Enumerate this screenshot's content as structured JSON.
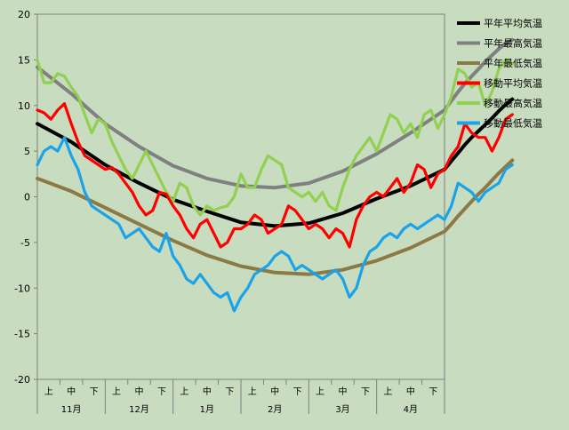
{
  "chart_data": {
    "type": "line",
    "title": "",
    "xlabel": "",
    "ylabel": "",
    "ylim": [
      -20,
      20
    ],
    "yticks": [
      -20,
      -15,
      -10,
      -5,
      0,
      5,
      10,
      15,
      20
    ],
    "grid": false,
    "legend_position": "top-right",
    "background_color": "#c8dcc0",
    "x_positions_per_month": 30,
    "months": [
      "11月",
      "12月",
      "1月",
      "2月",
      "3月",
      "4月"
    ],
    "decades": [
      "上",
      "中",
      "下"
    ],
    "series": [
      {
        "name": "平年平均気温",
        "color": "#000000",
        "x": [
          0,
          15,
          30,
          45,
          60,
          75,
          90,
          105,
          120,
          135,
          150,
          165,
          180
        ],
        "values": [
          8.0,
          6.0,
          3.5,
          1.5,
          -0.3,
          -1.6,
          -2.8,
          -3.2,
          -2.9,
          -1.8,
          -0.2,
          1.2,
          3.0
        ]
      },
      {
        "name": "平年最高気温",
        "color": "#808080",
        "x": [
          0,
          15,
          30,
          45,
          60,
          75,
          90,
          105,
          120,
          135,
          150,
          165,
          180
        ],
        "values": [
          14.2,
          11.3,
          8.0,
          5.5,
          3.4,
          2.0,
          1.2,
          1.0,
          1.5,
          2.8,
          4.7,
          7.0,
          9.5
        ]
      },
      {
        "name": "平年最低気温",
        "color": "#8c7a46",
        "x": [
          0,
          15,
          30,
          45,
          60,
          75,
          90,
          105,
          120,
          135,
          150,
          165,
          180
        ],
        "values": [
          2.0,
          0.6,
          -1.2,
          -3.0,
          -4.8,
          -6.4,
          -7.6,
          -8.3,
          -8.5,
          -8.0,
          -7.0,
          -5.6,
          -3.8
        ]
      },
      {
        "name": "移動平均気温",
        "color": "#ff0000",
        "x": [
          0,
          3,
          6,
          9,
          12,
          15,
          18,
          21,
          24,
          27,
          30,
          33,
          36,
          39,
          42,
          45,
          48,
          51,
          54,
          57,
          60,
          63,
          66,
          69,
          72,
          75,
          78,
          81,
          84,
          87,
          90,
          93,
          96,
          99,
          102,
          105,
          108,
          111,
          114,
          117,
          120,
          123,
          126,
          129,
          132,
          135,
          138,
          141,
          144,
          147,
          150,
          153,
          156,
          159,
          162,
          165,
          168,
          171,
          174,
          177,
          180
        ],
        "values": [
          9.5,
          9.2,
          8.5,
          9.5,
          10.2,
          8.0,
          6.0,
          4.5,
          4.0,
          3.5,
          3.0,
          3.2,
          2.5,
          1.5,
          0.5,
          -1.0,
          -2.0,
          -1.5,
          0.5,
          0.3,
          -1.0,
          -2.0,
          -3.5,
          -4.5,
          -3.0,
          -2.5,
          -4.0,
          -5.5,
          -5.0,
          -3.5,
          -3.5,
          -3.0,
          -2.0,
          -2.5,
          -4.0,
          -3.5,
          -3.0,
          -1.0,
          -1.5,
          -2.5,
          -3.5,
          -3.0,
          -3.5,
          -4.5,
          -3.5,
          -4.0,
          -5.5,
          -2.5,
          -1.0,
          0.0,
          0.5,
          0.0,
          1.0,
          2.0,
          0.5,
          1.5,
          3.5,
          3.0,
          1.0,
          2.5,
          3.0
        ]
      },
      {
        "name": "移動最高気温",
        "color": "#92d050",
        "x": [
          0,
          3,
          6,
          9,
          12,
          15,
          18,
          21,
          24,
          27,
          30,
          33,
          36,
          39,
          42,
          45,
          48,
          51,
          54,
          57,
          60,
          63,
          66,
          69,
          72,
          75,
          78,
          81,
          84,
          87,
          90,
          93,
          96,
          99,
          102,
          105,
          108,
          111,
          114,
          117,
          120,
          123,
          126,
          129,
          132,
          135,
          138,
          141,
          144,
          147,
          150,
          153,
          156,
          159,
          162,
          165,
          168,
          171,
          174,
          177,
          180
        ],
        "values": [
          15.0,
          12.5,
          12.5,
          13.5,
          13.2,
          12.0,
          11.0,
          9.0,
          7.0,
          8.5,
          8.0,
          6.0,
          4.5,
          3.0,
          2.0,
          3.5,
          5.0,
          3.5,
          2.0,
          0.5,
          -0.5,
          1.5,
          1.0,
          -1.0,
          -2.0,
          -1.0,
          -1.5,
          -1.2,
          -1.0,
          0.0,
          2.5,
          1.0,
          1.0,
          3.0,
          4.5,
          4.0,
          3.5,
          1.0,
          0.5,
          0.0,
          0.5,
          -0.5,
          0.5,
          -1.0,
          -1.5,
          1.0,
          3.0,
          4.5,
          5.5,
          6.5,
          5.0,
          7.0,
          9.0,
          8.5,
          7.0,
          8.0,
          6.5,
          9.0,
          9.5,
          7.5,
          9.0
        ]
      },
      {
        "name": "移動最低気温",
        "color": "#1aa3e8",
        "x": [
          0,
          3,
          6,
          9,
          12,
          15,
          18,
          21,
          24,
          27,
          30,
          33,
          36,
          39,
          42,
          45,
          48,
          51,
          54,
          57,
          60,
          63,
          66,
          69,
          72,
          75,
          78,
          81,
          84,
          87,
          90,
          93,
          96,
          99,
          102,
          105,
          108,
          111,
          114,
          117,
          120,
          123,
          126,
          129,
          132,
          135,
          138,
          141,
          144,
          147,
          150,
          153,
          156,
          159,
          162,
          165,
          168,
          171,
          174,
          177,
          180
        ],
        "values": [
          3.5,
          5.0,
          5.5,
          5.0,
          6.5,
          4.5,
          3.0,
          0.5,
          -1.0,
          -1.5,
          -2.0,
          -2.5,
          -3.0,
          -4.5,
          -4.0,
          -3.5,
          -4.5,
          -5.5,
          -6.0,
          -4.0,
          -6.5,
          -7.5,
          -9.0,
          -9.5,
          -8.5,
          -9.5,
          -10.5,
          -11.0,
          -10.5,
          -12.5,
          -11.0,
          -10.0,
          -8.5,
          -8.0,
          -7.5,
          -6.5,
          -6.0,
          -6.5,
          -8.0,
          -7.5,
          -8.0,
          -8.5,
          -9.0,
          -8.5,
          -8.0,
          -9.0,
          -11.0,
          -10.0,
          -7.5,
          -6.0,
          -5.5,
          -4.5,
          -4.0,
          -4.5,
          -3.5,
          -3.0,
          -3.5,
          -3.0,
          -2.5,
          -2.0,
          -2.5
        ]
      }
    ],
    "apr_x": [
      180,
      183,
      186,
      189,
      192,
      195,
      198,
      201,
      204,
      207,
      210
    ],
    "apr_series": [
      {
        "name": "平年平均気温",
        "values": [
          3.0,
          3.9,
          4.8,
          5.7,
          6.5,
          7.2,
          7.9,
          8.6,
          9.4,
          10.1,
          10.7
        ]
      },
      {
        "name": "平年最高気温",
        "values": [
          9.5,
          10.5,
          11.5,
          12.4,
          13.2,
          14.0,
          14.8,
          15.5,
          16.2,
          16.8,
          17.2
        ]
      },
      {
        "name": "平年最低気温",
        "values": [
          -3.8,
          -3.0,
          -2.1,
          -1.3,
          -0.5,
          0.3,
          1.0,
          1.8,
          2.6,
          3.3,
          4.0
        ]
      },
      {
        "name": "移動平均気温",
        "values": [
          3.0,
          4.5,
          5.5,
          8.0,
          7.0,
          6.5,
          6.5,
          5.0,
          6.5,
          8.5,
          9.0
        ]
      },
      {
        "name": "移動最高気温",
        "values": [
          9.0,
          11.0,
          14.0,
          13.5,
          12.0,
          12.5,
          10.0,
          11.5,
          14.0,
          15.0,
          14.5
        ]
      },
      {
        "name": "移動最低気温",
        "values": [
          -2.5,
          -1.0,
          1.5,
          1.0,
          0.5,
          -0.5,
          0.5,
          1.0,
          1.5,
          3.0,
          3.5
        ]
      }
    ]
  }
}
